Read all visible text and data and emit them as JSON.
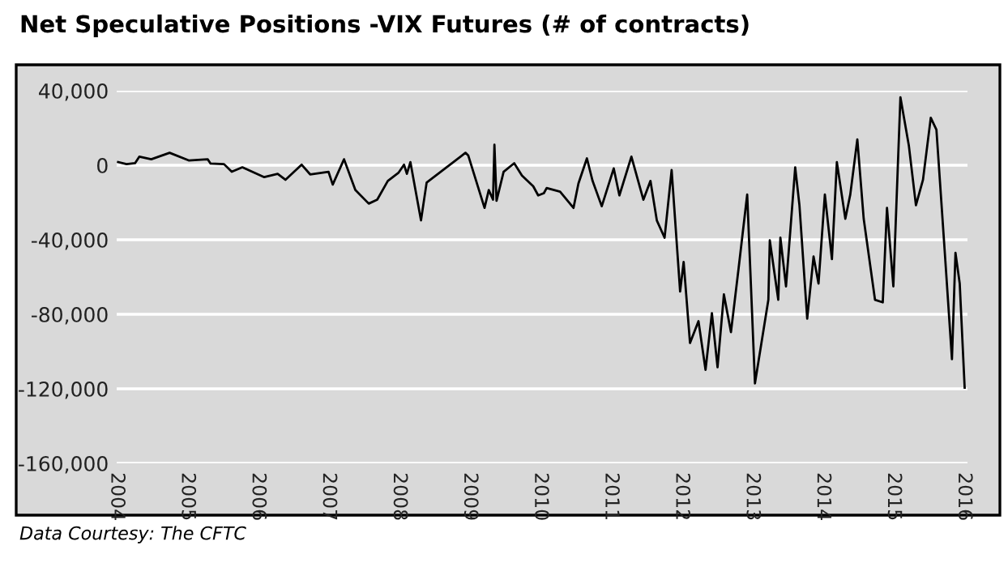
{
  "chart_data": {
    "type": "line",
    "title": "Net Speculative Positions -VIX Futures (# of contracts)",
    "annotations": [
      "Data Courtesy: The CFTC"
    ],
    "x": [
      2004.02,
      2004.14,
      2004.26,
      2004.32,
      2004.49,
      2004.75,
      2005.02,
      2005.29,
      2005.33,
      2005.52,
      2005.63,
      2005.78,
      2006.09,
      2006.28,
      2006.39,
      2006.62,
      2006.74,
      2007.0,
      2007.06,
      2007.22,
      2007.38,
      2007.57,
      2007.69,
      2007.84,
      2007.99,
      2008.07,
      2008.11,
      2008.16,
      2008.31,
      2008.39,
      2008.87,
      2008.94,
      2008.98,
      2009.21,
      2009.27,
      2009.33,
      2009.35,
      2009.38,
      2009.48,
      2009.63,
      2009.74,
      2009.9,
      2009.97,
      2010.05,
      2010.09,
      2010.28,
      2010.47,
      2010.54,
      2010.66,
      2010.74,
      2010.87,
      2011.04,
      2011.12,
      2011.29,
      2011.46,
      2011.56,
      2011.65,
      2011.76,
      2011.86,
      2011.98,
      2012.03,
      2012.12,
      2012.24,
      2012.34,
      2012.43,
      2012.51,
      2012.6,
      2012.7,
      2012.81,
      2012.93,
      2013.04,
      2013.23,
      2013.25,
      2013.37,
      2013.4,
      2013.48,
      2013.61,
      2013.67,
      2013.78,
      2013.87,
      2013.94,
      2014.03,
      2014.13,
      2014.2,
      2014.32,
      2014.39,
      2014.49,
      2014.58,
      2014.74,
      2014.85,
      2014.91,
      2015.0,
      2015.1,
      2015.22,
      2015.32,
      2015.42,
      2015.53,
      2015.61,
      2015.73,
      2015.83,
      2015.88,
      2015.94,
      2016.01
    ],
    "values": [
      1700,
      600,
      1100,
      4600,
      3200,
      6700,
      2600,
      3200,
      900,
      600,
      -3500,
      -1100,
      -6400,
      -4600,
      -7800,
      300,
      -4900,
      -3500,
      -10400,
      3200,
      -13300,
      -20600,
      -18500,
      -8400,
      -4100,
      300,
      -4600,
      1700,
      -29600,
      -9300,
      4600,
      6700,
      5200,
      -22900,
      -13300,
      -18500,
      11000,
      -19100,
      -3500,
      1100,
      -5500,
      -11300,
      -16200,
      -15000,
      -12200,
      -14200,
      -22900,
      -9800,
      3700,
      -8400,
      -22000,
      -1700,
      -16200,
      4600,
      -18500,
      -8400,
      -29600,
      -38900,
      -2600,
      -67800,
      -51900,
      -95400,
      -83700,
      -109800,
      -79400,
      -108400,
      -69300,
      -89600,
      -54800,
      -15700,
      -117100,
      -72200,
      -40300,
      -72200,
      -38900,
      -65000,
      -1100,
      -21500,
      -82300,
      -49000,
      -63500,
      -15700,
      -50400,
      1700,
      -28700,
      -15700,
      13900,
      -28700,
      -72200,
      -73600,
      -22900,
      -65000,
      36500,
      10400,
      -21500,
      -7800,
      25500,
      19100,
      -47600,
      -104100,
      -47000,
      -63500,
      -119400
    ],
    "color": "#000000",
    "xlim": [
      2004,
      2016.05
    ],
    "xticks": [
      2004,
      2005,
      2006,
      2007,
      2008,
      2009,
      2010,
      2011,
      2012,
      2013,
      2014,
      2015,
      2016
    ],
    "ylim": [
      -160000,
      40000
    ],
    "yticks": [
      {
        "value": 40000,
        "label": "40,000"
      },
      {
        "value": 0,
        "label": "0"
      },
      {
        "value": -40000,
        "label": "-40,000"
      },
      {
        "value": -80000,
        "label": "-80,000"
      },
      {
        "value": -120000,
        "label": "-120,000"
      },
      {
        "value": -160000,
        "label": "-160,000"
      }
    ],
    "grid": "y"
  }
}
